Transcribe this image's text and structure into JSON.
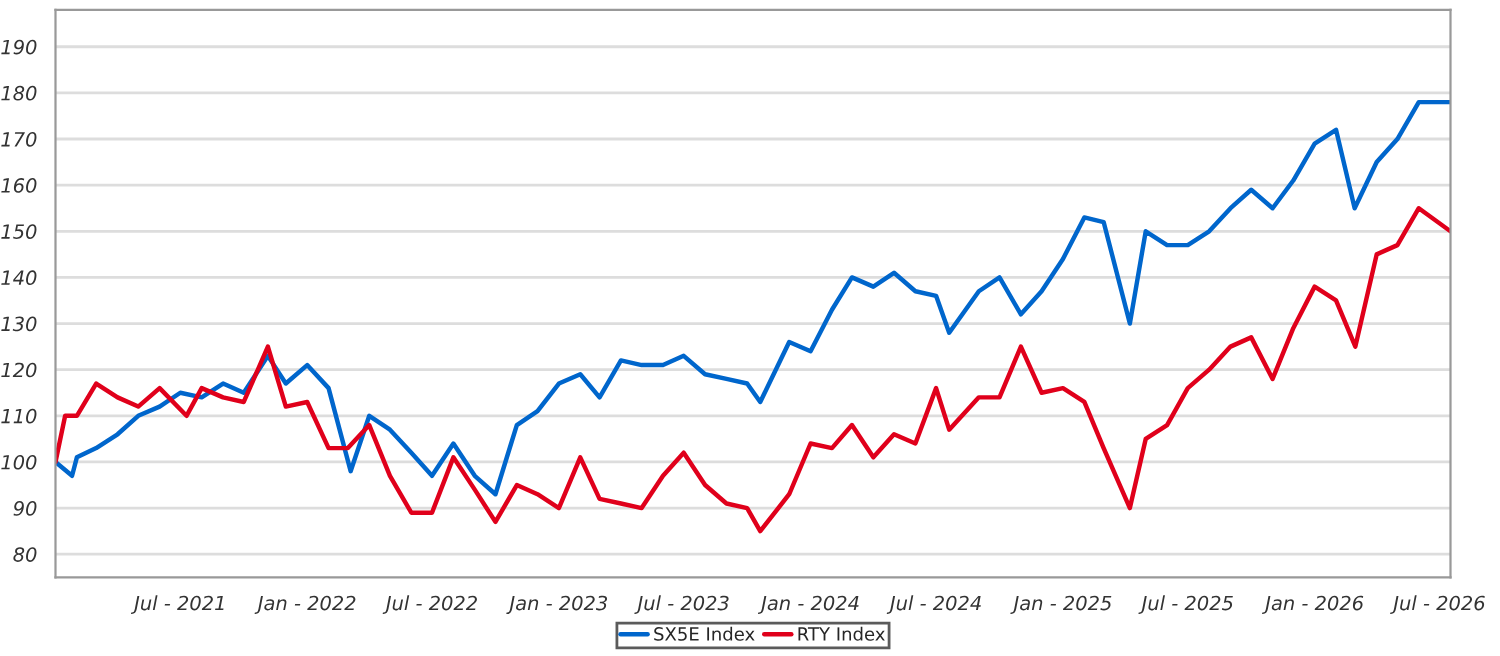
{
  "chart_data": {
    "type": "line",
    "xlim": [
      "2021-01-01",
      "2026-07-17"
    ],
    "xticks": [
      {
        "value": "2021-07-01",
        "label": "Jul - 2021"
      },
      {
        "value": "2022-01-01",
        "label": "Jan - 2022"
      },
      {
        "value": "2022-07-01",
        "label": "Jul - 2022"
      },
      {
        "value": "2023-01-01",
        "label": "Jan - 2023"
      },
      {
        "value": "2023-07-01",
        "label": "Jul - 2023"
      },
      {
        "value": "2024-01-01",
        "label": "Jan - 2024"
      },
      {
        "value": "2024-07-01",
        "label": "Jul - 2024"
      },
      {
        "value": "2025-01-01",
        "label": "Jan - 2025"
      },
      {
        "value": "2025-07-01",
        "label": "Jul - 2025"
      },
      {
        "value": "2026-01-01",
        "label": "Jan - 2026"
      },
      {
        "value": "2026-07-01",
        "label": "Jul - 2026"
      }
    ],
    "ylim": [
      75,
      198
    ],
    "yticks": [
      80,
      90,
      100,
      110,
      120,
      130,
      140,
      150,
      160,
      170,
      180,
      190
    ],
    "grid": "y",
    "legend": "bottom",
    "marker": "none",
    "line_style": "solid",
    "series": [
      {
        "name": "SX5E Index",
        "color": "#0066cc",
        "x": [
          "2021-01-01",
          "2021-01-25",
          "2021-02-01",
          "2021-03-01",
          "2021-04-01",
          "2021-05-01",
          "2021-06-01",
          "2021-07-01",
          "2021-08-01",
          "2021-09-01",
          "2021-10-01",
          "2021-11-05",
          "2021-12-01",
          "2022-01-01",
          "2022-02-01",
          "2022-03-05",
          "2022-04-01",
          "2022-05-01",
          "2022-06-01",
          "2022-07-01",
          "2022-08-01",
          "2022-09-01",
          "2022-10-01",
          "2022-11-01",
          "2022-12-01",
          "2023-01-01",
          "2023-02-01",
          "2023-03-01",
          "2023-04-01",
          "2023-05-01",
          "2023-06-01",
          "2023-07-01",
          "2023-08-01",
          "2023-09-01",
          "2023-10-01",
          "2023-10-20",
          "2023-12-01",
          "2024-01-01",
          "2024-02-01",
          "2024-03-01",
          "2024-04-01",
          "2024-05-01",
          "2024-06-01",
          "2024-07-01",
          "2024-07-20",
          "2024-09-01",
          "2024-10-01",
          "2024-11-01",
          "2024-12-01",
          "2025-01-01",
          "2025-02-01",
          "2025-03-01",
          "2025-04-08",
          "2025-05-01",
          "2025-06-01",
          "2025-07-01",
          "2025-08-01",
          "2025-09-01",
          "2025-10-01",
          "2025-11-01",
          "2025-12-01",
          "2026-01-01",
          "2026-02-01",
          "2026-02-28",
          "2026-04-01",
          "2026-05-01",
          "2026-06-01",
          "2026-07-17"
        ],
        "values": [
          100,
          97,
          101,
          103,
          106,
          110,
          112,
          115,
          114,
          117,
          115,
          123,
          117,
          121,
          116,
          98,
          110,
          107,
          102,
          97,
          104,
          97,
          93,
          108,
          111,
          117,
          119,
          114,
          122,
          121,
          121,
          123,
          119,
          118,
          117,
          113,
          126,
          124,
          133,
          140,
          138,
          141,
          137,
          136,
          128,
          137,
          140,
          132,
          137,
          144,
          153,
          152,
          130,
          150,
          147,
          147,
          150,
          155,
          159,
          155,
          161,
          169,
          172,
          155,
          165,
          170,
          178,
          178
        ]
      },
      {
        "name": "RTY Index",
        "color": "#e0001b",
        "x": [
          "2021-01-01",
          "2021-01-15",
          "2021-02-01",
          "2021-03-01",
          "2021-04-01",
          "2021-05-01",
          "2021-06-01",
          "2021-07-10",
          "2021-08-01",
          "2021-09-01",
          "2021-10-01",
          "2021-11-05",
          "2021-12-01",
          "2022-01-01",
          "2022-02-01",
          "2022-03-01",
          "2022-04-01",
          "2022-05-01",
          "2022-06-01",
          "2022-07-01",
          "2022-08-01",
          "2022-09-01",
          "2022-10-01",
          "2022-11-01",
          "2022-12-01",
          "2023-01-01",
          "2023-02-01",
          "2023-03-01",
          "2023-04-01",
          "2023-05-01",
          "2023-06-01",
          "2023-07-01",
          "2023-08-01",
          "2023-09-01",
          "2023-10-01",
          "2023-10-20",
          "2023-12-01",
          "2024-01-01",
          "2024-02-01",
          "2024-03-01",
          "2024-04-01",
          "2024-05-01",
          "2024-06-01",
          "2024-07-01",
          "2024-07-20",
          "2024-09-01",
          "2024-10-01",
          "2024-11-01",
          "2024-12-01",
          "2025-01-01",
          "2025-02-01",
          "2025-03-01",
          "2025-04-08",
          "2025-05-01",
          "2025-06-01",
          "2025-07-01",
          "2025-08-01",
          "2025-09-01",
          "2025-10-01",
          "2025-11-01",
          "2025-12-01",
          "2026-01-01",
          "2026-02-01",
          "2026-03-01",
          "2026-04-01",
          "2026-05-01",
          "2026-06-01",
          "2026-07-17"
        ],
        "values": [
          100,
          110,
          110,
          117,
          114,
          112,
          116,
          110,
          116,
          114,
          113,
          125,
          112,
          113,
          103,
          103,
          108,
          97,
          89,
          89,
          101,
          94,
          87,
          95,
          93,
          90,
          101,
          92,
          91,
          90,
          97,
          102,
          95,
          91,
          90,
          85,
          93,
          104,
          103,
          108,
          101,
          106,
          104,
          116,
          107,
          114,
          114,
          125,
          115,
          116,
          113,
          103,
          90,
          105,
          108,
          116,
          120,
          125,
          127,
          118,
          129,
          138,
          135,
          125,
          145,
          147,
          155,
          150
        ]
      }
    ]
  }
}
